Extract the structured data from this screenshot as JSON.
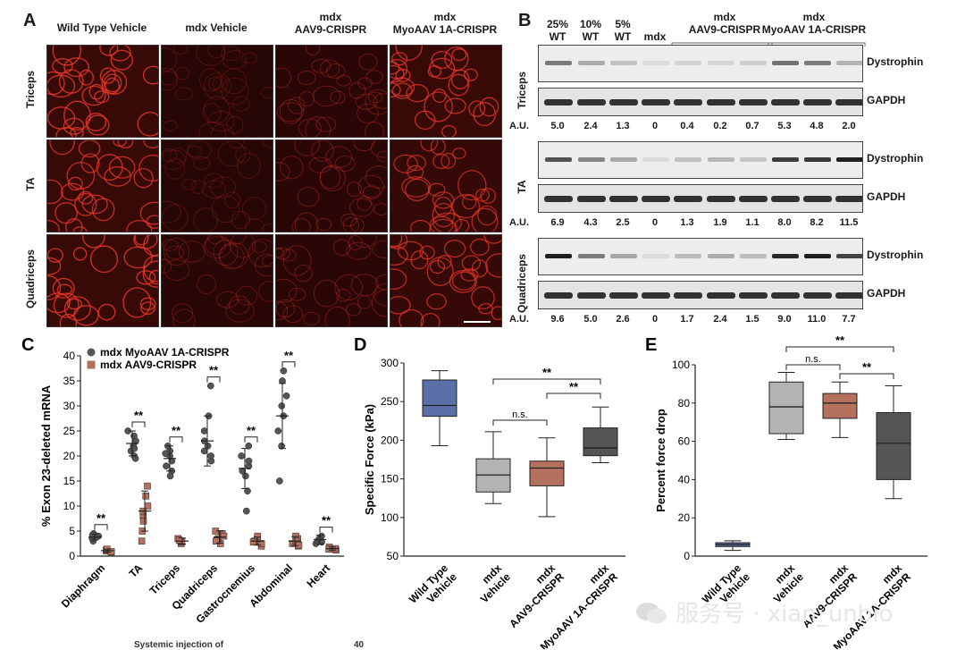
{
  "panelA": {
    "letter": "A",
    "columns": [
      "Wild Type Vehicle",
      "mdx Vehicle",
      "mdx\nAAV9-CRISPR",
      "mdx\nMyoAAV 1A-CRISPR"
    ],
    "rows": [
      "Triceps",
      "TA",
      "Quadriceps"
    ],
    "intensity": [
      [
        0.85,
        0.15,
        0.3,
        0.8
      ],
      [
        0.8,
        0.15,
        0.3,
        0.7
      ],
      [
        0.85,
        0.25,
        0.3,
        0.75
      ]
    ]
  },
  "panelB": {
    "letter": "B",
    "lanes": [
      "25%\nWT",
      "10%\nWT",
      "5%\nWT",
      "mdx"
    ],
    "group1": "mdx\nAAV9-CRISPR",
    "group2": "mdx\nMyoAAV 1A-CRISPR",
    "au_label": "A.U.",
    "band_dystrophin": "Dystrophin",
    "band_gapdh": "GAPDH",
    "blots": [
      {
        "tissue": "Triceps",
        "au": [
          "5.0",
          "2.4",
          "1.3",
          "0",
          "0.4",
          "0.2",
          "0.7",
          "5.3",
          "4.8",
          "2.0"
        ]
      },
      {
        "tissue": "TA",
        "au": [
          "6.9",
          "4.3",
          "2.5",
          "0",
          "1.3",
          "1.9",
          "1.1",
          "8.0",
          "8.2",
          "11.5"
        ]
      },
      {
        "tissue": "Quadriceps",
        "au": [
          "9.6",
          "5.0",
          "2.6",
          "0",
          "1.7",
          "2.4",
          "1.5",
          "9.0",
          "11.0",
          "7.7"
        ]
      }
    ]
  },
  "chart_data": [
    {
      "panel": "C",
      "type": "scatter",
      "ylabel": "% Exon 23-deleted mRNA",
      "ylim": [
        0,
        40
      ],
      "yticks": [
        "0",
        "5",
        "10",
        "15",
        "20",
        "25",
        "30",
        "35",
        "40"
      ],
      "categories": [
        "Diaphragm",
        "TA",
        "Triceps",
        "Quadriceps",
        "Gastrocnemius",
        "Abdominal",
        "Heart"
      ],
      "series": [
        {
          "name": "mdx MyoAAV 1A-CRISPR",
          "color": "#555555",
          "mean": [
            3.8,
            22.5,
            19.5,
            23.0,
            17.5,
            28.0,
            3.3
          ],
          "sd": [
            0.6,
            2.5,
            2.5,
            5.0,
            4.0,
            6.5,
            0.9
          ],
          "points": [
            [
              3.0,
              3.5,
              4.0,
              4.5,
              3.8,
              4.2
            ],
            [
              20,
              21,
              22,
              24,
              25,
              23,
              21.5,
              19.5
            ],
            [
              17,
              18,
              19,
              20,
              21,
              22,
              16,
              20.5
            ],
            [
              19,
              20,
              22,
              23,
              25,
              34,
              21,
              28
            ],
            [
              9,
              13,
              16,
              18,
              19,
              20,
              17,
              22
            ],
            [
              15,
              22,
              25,
              30,
              32,
              35,
              37,
              28
            ],
            [
              2.5,
              3,
              3.5,
              4,
              3.2,
              2.8
            ]
          ]
        },
        {
          "name": "mdx AAV9-CRISPR",
          "color": "#b5705e",
          "mean": [
            1.1,
            9.0,
            3.0,
            3.8,
            3.0,
            3.0,
            1.5
          ],
          "sd": [
            0.3,
            4.0,
            0.6,
            1.2,
            0.8,
            0.9,
            0.3
          ],
          "points": [
            [
              0.8,
              1.0,
              1.2,
              1.4,
              0.9
            ],
            [
              3,
              5,
              8,
              10,
              12,
              14,
              7,
              9
            ],
            [
              2.5,
              3,
              3.5,
              2.8,
              3.2
            ],
            [
              2.5,
              3.5,
              4.5,
              5,
              3,
              4
            ],
            [
              2,
              2.5,
              3,
              3.5,
              4,
              2.8
            ],
            [
              2,
              2.5,
              3.5,
              4,
              3,
              2.2
            ],
            [
              1.2,
              1.5,
              1.8,
              1.4
            ]
          ]
        }
      ],
      "sig": [
        "**",
        "**",
        "**",
        "**",
        "**",
        "**",
        "**"
      ]
    },
    {
      "panel": "D",
      "type": "box",
      "ylabel": "Specific Force (kPa)",
      "ylim": [
        50,
        300
      ],
      "yticks": [
        "50",
        "100",
        "150",
        "200",
        "250",
        "300"
      ],
      "categories": [
        "Wild Type\nVehicle",
        "mdx\nVehicle",
        "mdx\nAAV9-CRISPR",
        "mdx\nMyoAAV 1A-CRISPR"
      ],
      "colors": [
        "#5b6fa8",
        "#b3b3b3",
        "#b5705e",
        "#555555"
      ],
      "boxes": [
        {
          "min": 193,
          "q1": 231,
          "median": 245,
          "q3": 278,
          "max": 290
        },
        {
          "min": 118,
          "q1": 133,
          "median": 155,
          "q3": 176,
          "max": 211
        },
        {
          "min": 101,
          "q1": 141,
          "median": 164,
          "q3": 173,
          "max": 203
        },
        {
          "min": 171,
          "q1": 180,
          "median": 190,
          "q3": 216,
          "max": 243
        }
      ],
      "comparisons": [
        {
          "from": 1,
          "to": 3,
          "label": "**"
        },
        {
          "from": 1,
          "to": 2,
          "label": "n.s."
        },
        {
          "from": 2,
          "to": 3,
          "label": "**"
        }
      ]
    },
    {
      "panel": "E",
      "type": "box",
      "ylabel": "Percent force drop",
      "ylim": [
        0,
        100
      ],
      "yticks": [
        "0",
        "20",
        "40",
        "60",
        "80",
        "100"
      ],
      "categories": [
        "Wild Type\nVehicle",
        "mdx\nVehicle",
        "mdx\nAAV9-CRISPR",
        "mdx\nMyoAAV 1A-CRISPR"
      ],
      "colors": [
        "#5b6fa8",
        "#b3b3b3",
        "#b5705e",
        "#555555"
      ],
      "boxes": [
        {
          "min": 3,
          "q1": 5,
          "median": 6,
          "q3": 7,
          "max": 8
        },
        {
          "min": 61,
          "q1": 64,
          "median": 78,
          "q3": 91,
          "max": 96
        },
        {
          "min": 62,
          "q1": 72,
          "median": 80,
          "q3": 85,
          "max": 91
        },
        {
          "min": 30,
          "q1": 40,
          "median": 59,
          "q3": 75,
          "max": 89
        }
      ],
      "comparisons": [
        {
          "from": 1,
          "to": 3,
          "label": "**"
        },
        {
          "from": 1,
          "to": 2,
          "label": "n.s."
        },
        {
          "from": 2,
          "to": 3,
          "label": "**"
        }
      ]
    }
  ],
  "footer": {
    "text1": "Systemic injection of",
    "text2": "40"
  },
  "watermark": "服务号 · xian_unbio"
}
